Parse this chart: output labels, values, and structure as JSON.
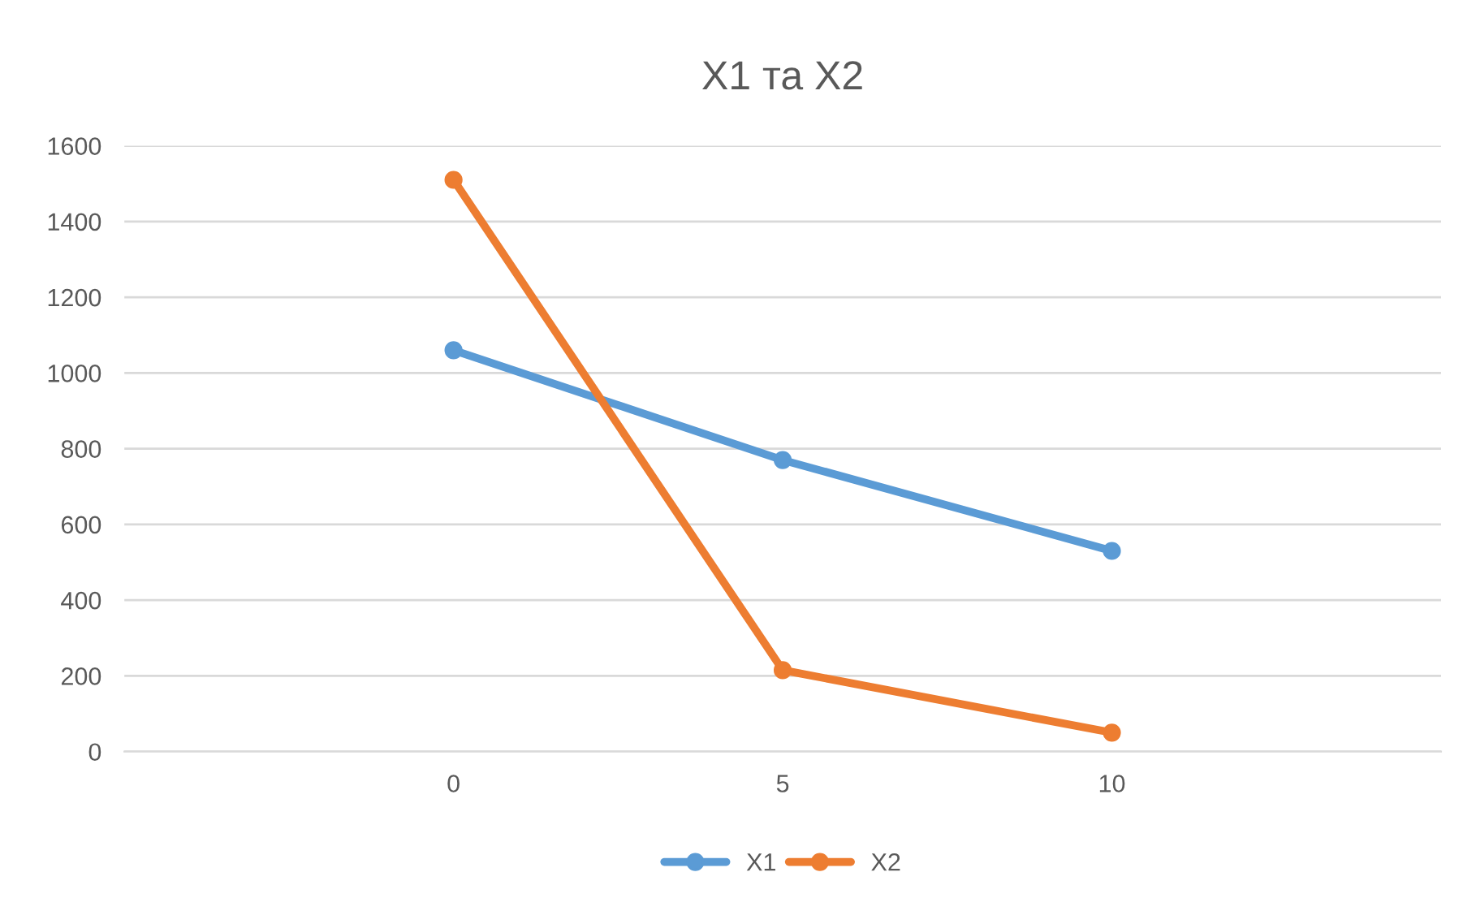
{
  "chart_data": {
    "type": "line",
    "title": "X1 та X2",
    "categories": [
      "0",
      "5",
      "10"
    ],
    "series": [
      {
        "name": "X1",
        "color": "#5b9bd5",
        "values": [
          1060,
          770,
          530
        ]
      },
      {
        "name": "X2",
        "color": "#ed7d31",
        "values": [
          1510,
          215,
          50
        ]
      }
    ],
    "ylim": [
      0,
      1600
    ],
    "yticks": [
      0,
      200,
      400,
      600,
      800,
      1000,
      1200,
      1400,
      1600
    ],
    "grid": "y",
    "legend": "bottom",
    "marker": "circle",
    "line_style": "solid"
  }
}
